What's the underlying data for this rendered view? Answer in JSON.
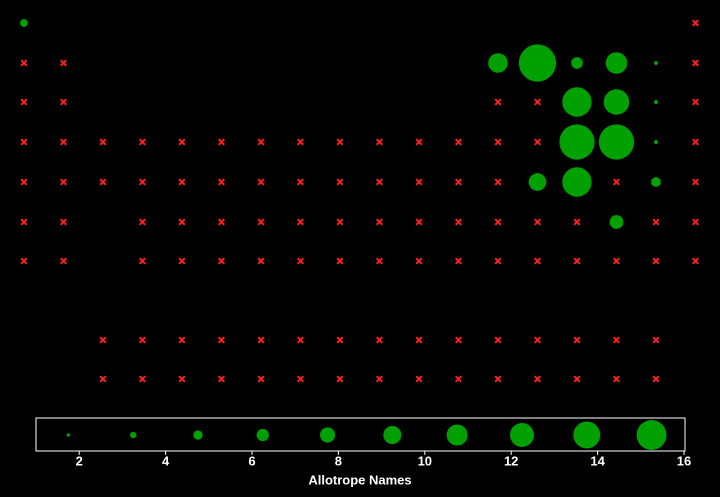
{
  "chart_data": {
    "type": "bubble-grid",
    "rows": [
      [
        4,
        null,
        null,
        null,
        null,
        null,
        null,
        null,
        null,
        null,
        null,
        null,
        null,
        null,
        null,
        null,
        null,
        0
      ],
      [
        0,
        0,
        null,
        null,
        null,
        null,
        null,
        null,
        null,
        null,
        null,
        null,
        10,
        19,
        6,
        11,
        2,
        0
      ],
      [
        0,
        0,
        null,
        null,
        null,
        null,
        null,
        null,
        null,
        null,
        null,
        null,
        0,
        0,
        15,
        13,
        2,
        0
      ],
      [
        0,
        0,
        0,
        0,
        0,
        0,
        0,
        0,
        0,
        0,
        0,
        0,
        0,
        0,
        18,
        18,
        2,
        0
      ],
      [
        0,
        0,
        0,
        0,
        0,
        0,
        0,
        0,
        0,
        0,
        0,
        0,
        0,
        9,
        15,
        0,
        5,
        0
      ],
      [
        0,
        0,
        null,
        0,
        0,
        0,
        0,
        0,
        0,
        0,
        0,
        0,
        0,
        0,
        0,
        7,
        0,
        0
      ],
      [
        0,
        0,
        null,
        0,
        0,
        0,
        0,
        0,
        0,
        0,
        0,
        0,
        0,
        0,
        0,
        0,
        0,
        0
      ],
      [
        null,
        null,
        0,
        0,
        0,
        0,
        0,
        0,
        0,
        0,
        0,
        0,
        0,
        0,
        0,
        0,
        0,
        null
      ],
      [
        null,
        null,
        0,
        0,
        0,
        0,
        0,
        0,
        0,
        0,
        0,
        0,
        0,
        0,
        0,
        0,
        0,
        null
      ]
    ],
    "present_color": "#00a000",
    "absent_color": "#ff2020",
    "legend_values": [
      1.75,
      3.25,
      4.75,
      6.25,
      7.75,
      9.25,
      10.75,
      12.25,
      13.75,
      15.25
    ],
    "xlim": [
      1,
      16
    ],
    "xticks": [
      2,
      4,
      6,
      8,
      10,
      12,
      14,
      16
    ],
    "xlabel": "Allotrope Names"
  }
}
